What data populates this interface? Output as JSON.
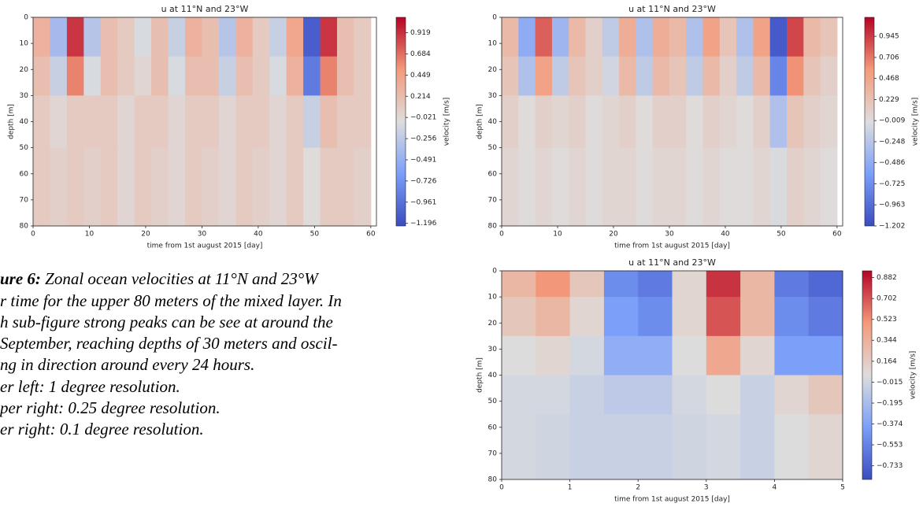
{
  "chart_data": [
    {
      "type": "heatmap",
      "title": "u at 11°N and 23°W",
      "xlabel": "time from 1st august 2015 [day]",
      "ylabel": "depth [m]",
      "xlim": [
        0,
        61
      ],
      "xticks": [
        0,
        10,
        20,
        30,
        40,
        50,
        60
      ],
      "ylim": [
        80,
        0
      ],
      "yticks": [
        0,
        10,
        20,
        30,
        40,
        50,
        60,
        70,
        80
      ],
      "colormap": "coolwarm",
      "xbins": [
        0,
        3,
        6,
        9,
        12,
        15,
        18,
        21,
        24,
        27,
        30,
        33,
        36,
        39,
        42,
        45,
        48,
        51,
        54,
        57,
        60
      ],
      "ybins": [
        0,
        15,
        30,
        50,
        80
      ],
      "z": [
        [
          0.3,
          -0.4,
          0.9,
          -0.3,
          0.2,
          0.1,
          -0.1,
          0.2,
          -0.2,
          0.3,
          0.2,
          -0.3,
          0.3,
          0.1,
          -0.2,
          0.4,
          -1.1,
          0.9,
          0.2,
          0.1
        ],
        [
          0.2,
          -0.2,
          0.6,
          -0.1,
          0.2,
          0.1,
          0.0,
          0.2,
          -0.1,
          0.2,
          0.2,
          -0.2,
          0.2,
          0.1,
          -0.1,
          0.3,
          -0.9,
          0.6,
          0.2,
          0.1
        ],
        [
          0.1,
          0.0,
          0.1,
          0.1,
          0.1,
          0.0,
          0.1,
          0.1,
          0.0,
          0.1,
          0.1,
          0.0,
          0.1,
          0.1,
          0.0,
          0.1,
          -0.2,
          0.2,
          0.1,
          0.1
        ],
        [
          0.1,
          0.05,
          0.1,
          0.05,
          0.1,
          0.0,
          0.1,
          0.05,
          0.0,
          0.1,
          0.05,
          0.0,
          0.1,
          0.05,
          0.0,
          0.1,
          -0.05,
          0.1,
          0.1,
          0.05
        ]
      ],
      "colorbar": {
        "label": "velocity [m/s]",
        "lim": [
          -1.225,
          1.09
        ],
        "ticks": [
          0.919,
          0.684,
          0.449,
          0.214,
          {
            "value": -0.021,
            "label": "−0.021"
          },
          {
            "value": -0.256,
            "label": "−0.256"
          },
          {
            "value": -0.491,
            "label": "−0.491"
          },
          {
            "value": -0.726,
            "label": "−0.726"
          },
          {
            "value": -0.961,
            "label": "−0.961"
          },
          {
            "value": -1.196,
            "label": "−1.196"
          }
        ]
      }
    },
    {
      "type": "heatmap",
      "title": "u at 11°N and 23°W",
      "xlabel": "time from 1st august 2015 [day]",
      "ylabel": "depth [m]",
      "xlim": [
        0,
        61
      ],
      "xticks": [
        0,
        10,
        20,
        30,
        40,
        50,
        60
      ],
      "ylim": [
        80,
        0
      ],
      "yticks": [
        0,
        10,
        20,
        30,
        40,
        50,
        60,
        70,
        80
      ],
      "colormap": "coolwarm",
      "xbins": [
        0,
        3,
        6,
        9,
        12,
        15,
        18,
        21,
        24,
        27,
        30,
        33,
        36,
        39,
        42,
        45,
        48,
        51,
        54,
        57,
        60
      ],
      "ybins": [
        0,
        15,
        30,
        50,
        80
      ],
      "z": [
        [
          0.3,
          -0.5,
          0.8,
          -0.4,
          0.3,
          0.1,
          -0.2,
          0.4,
          -0.3,
          0.4,
          0.3,
          -0.3,
          0.5,
          0.2,
          -0.3,
          0.5,
          -1.1,
          0.9,
          0.3,
          0.2
        ],
        [
          0.2,
          -0.3,
          0.5,
          -0.2,
          0.2,
          0.1,
          -0.1,
          0.3,
          -0.2,
          0.3,
          0.2,
          -0.2,
          0.3,
          0.1,
          -0.2,
          0.3,
          -0.8,
          0.6,
          0.2,
          0.1
        ],
        [
          0.1,
          0.0,
          0.1,
          0.05,
          0.1,
          0.0,
          0.05,
          0.1,
          0.0,
          0.1,
          0.1,
          0.0,
          0.1,
          0.05,
          0.0,
          0.1,
          -0.3,
          0.2,
          0.1,
          0.05
        ],
        [
          0.05,
          0.0,
          0.05,
          0.0,
          0.05,
          0.0,
          0.05,
          0.05,
          0.0,
          0.05,
          0.05,
          0.0,
          0.05,
          0.0,
          0.0,
          0.05,
          -0.05,
          0.1,
          0.05,
          0.0
        ]
      ],
      "colorbar": {
        "label": "velocity [m/s]",
        "lim": [
          -1.202,
          1.16
        ],
        "ticks": [
          0.945,
          0.706,
          0.468,
          0.229,
          {
            "value": -0.009,
            "label": "−0.009"
          },
          {
            "value": -0.248,
            "label": "−0.248"
          },
          {
            "value": -0.486,
            "label": "−0.486"
          },
          {
            "value": -0.725,
            "label": "−0.725"
          },
          {
            "value": -0.963,
            "label": "−0.963"
          },
          {
            "value": -1.202,
            "label": "−1.202"
          }
        ]
      }
    },
    {
      "type": "heatmap",
      "title": "u at 11°N and 23°W",
      "xlabel": "time from 1st august 2015 [day]",
      "ylabel": "depth [m]",
      "xlim": [
        0,
        5
      ],
      "xticks": [
        0,
        1,
        2,
        3,
        4,
        5
      ],
      "ylim": [
        80,
        0
      ],
      "yticks": [
        0,
        10,
        20,
        30,
        40,
        50,
        60,
        70,
        80
      ],
      "colormap": "coolwarm",
      "xbins": [
        0,
        0.5,
        1,
        1.5,
        2,
        2.5,
        3,
        3.5,
        4,
        4.5,
        5
      ],
      "ybins": [
        0,
        10,
        25,
        40,
        55,
        80
      ],
      "z": [
        [
          0.3,
          0.5,
          0.2,
          -0.5,
          -0.6,
          0.1,
          0.8,
          0.3,
          -0.6,
          -0.7
        ],
        [
          0.2,
          0.3,
          0.1,
          -0.4,
          -0.5,
          0.1,
          0.7,
          0.3,
          -0.5,
          -0.6
        ],
        [
          0.05,
          0.1,
          0.0,
          -0.3,
          -0.3,
          0.05,
          0.4,
          0.1,
          -0.4,
          -0.4
        ],
        [
          0.0,
          0.0,
          -0.05,
          -0.1,
          -0.1,
          0.0,
          0.05,
          -0.05,
          0.1,
          0.2
        ],
        [
          0.0,
          -0.02,
          -0.05,
          -0.05,
          -0.05,
          -0.02,
          0.0,
          -0.05,
          0.05,
          0.1
        ]
      ],
      "colorbar": {
        "label": "velocity [m/s]",
        "lim": [
          -0.85,
          0.94
        ],
        "ticks": [
          0.882,
          0.702,
          0.523,
          0.344,
          0.164,
          {
            "value": -0.015,
            "label": "−0.015"
          },
          {
            "value": -0.195,
            "label": "−0.195"
          },
          {
            "value": -0.374,
            "label": "−0.374"
          },
          {
            "value": -0.553,
            "label": "−0.553"
          },
          {
            "value": -0.733,
            "label": "−0.733"
          }
        ]
      }
    }
  ],
  "caption": {
    "label": "ure 6:",
    "lines": [
      " Zonal ocean velocities at 11°N and 23°W",
      "r time for the upper 80 meters of the mixed layer. In",
      "h sub-figure strong peaks can be see at around the",
      "September, reaching depths of 30 meters and oscil-",
      "ng in direction around every 24 hours.",
      "er left: 1 degree resolution.",
      "per right: 0.25 degree resolution.",
      "er right: 0.1 degree resolution."
    ]
  }
}
